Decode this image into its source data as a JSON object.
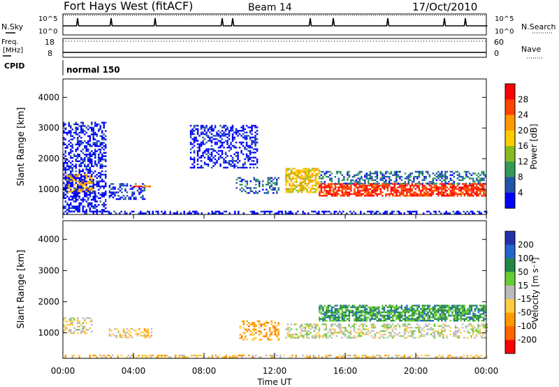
{
  "header": {
    "station": "Fort Hays West (fitACF)",
    "beam": "Beam 14",
    "date": "17/Oct/2010"
  },
  "noise_panel": {
    "left_label": "N.Sky",
    "right_label": "N.Search",
    "left_ticks": [
      "10^5",
      "10^0"
    ],
    "right_ticks": [
      "10^5",
      "10^0"
    ]
  },
  "freq_panel": {
    "left_label_1": "Freq.",
    "left_label_2": "[MHz]",
    "left_ticks": [
      "18",
      "8"
    ],
    "right_label": "Nave",
    "right_ticks": [
      "60",
      "0"
    ]
  },
  "cpid_panel": {
    "label": "CPID",
    "mode": "normal 150"
  },
  "power_panel": {
    "ylabel": "Slant Range [km]",
    "colorbar_label": "Power [dB]",
    "colorbar_ticks": [
      "28",
      "24",
      "20",
      "16",
      "12",
      "8",
      "4"
    ],
    "colorbar_colors": [
      "#ff0000",
      "#ff4400",
      "#ff9900",
      "#ffcc00",
      "#88bb22",
      "#339955",
      "#2255aa",
      "#0000ff"
    ]
  },
  "velocity_panel": {
    "ylabel": "Slant Range [km]",
    "colorbar_label": "Velocity [m s⁻¹]",
    "colorbar_ticks": [
      "200",
      "100",
      "50",
      "15",
      "-15",
      "-50",
      "-100",
      "-200"
    ],
    "colorbar_colors": [
      "#2233aa",
      "#2266cc",
      "#228844",
      "#66cc33",
      "#bbbbbb",
      "#ffcc44",
      "#ff9900",
      "#ff6600",
      "#ff0000"
    ]
  },
  "x_axis": {
    "label": "Time UT",
    "ticks": [
      "00:00",
      "04:00",
      "08:00",
      "12:00",
      "16:00",
      "20:00",
      "00:00"
    ]
  },
  "chart_data": {
    "type": "heatmap",
    "title": "Fort Hays West (fitACF)",
    "xlabel": "Time UT",
    "ylabel": "Slant Range [km]",
    "xlim": [
      0,
      24
    ],
    "ylim": [
      180,
      4600
    ],
    "y_ticks": [
      1000,
      2000,
      3000,
      4000
    ],
    "series": [
      {
        "name": "Power [dB]",
        "color_scale": [
          4,
          32
        ],
        "regions": [
          {
            "t": [
              0.2,
              1.6
            ],
            "r": [
              900,
              1500
            ],
            "value": 22
          },
          {
            "t": [
              0.0,
              2.4
            ],
            "r": [
              300,
              3200
            ],
            "value": 6
          },
          {
            "t": [
              2.6,
              4.6
            ],
            "r": [
              700,
              1200
            ],
            "value": 8
          },
          {
            "t": [
              4.0,
              5.0
            ],
            "r": [
              1080,
              1120
            ],
            "value": 26
          },
          {
            "t": [
              7.2,
              11.0
            ],
            "r": [
              1700,
              3100
            ],
            "value": 6
          },
          {
            "t": [
              9.8,
              12.2
            ],
            "r": [
              900,
              1400
            ],
            "value": 10
          },
          {
            "t": [
              12.6,
              14.5
            ],
            "r": [
              900,
              1700
            ],
            "value": 20
          },
          {
            "t": [
              14.5,
              24.0
            ],
            "r": [
              800,
              1200
            ],
            "value": 28
          },
          {
            "t": [
              14.5,
              24.0
            ],
            "r": [
              1200,
              1600
            ],
            "value": 10
          },
          {
            "t": [
              0.0,
              24.0
            ],
            "r": [
              200,
              300
            ],
            "value": 6
          }
        ]
      },
      {
        "name": "Velocity [m s⁻¹]",
        "color_scale": [
          -250,
          250
        ],
        "regions": [
          {
            "t": [
              0.0,
              1.6
            ],
            "r": [
              1000,
              1500
            ],
            "value": -15
          },
          {
            "t": [
              2.6,
              5.0
            ],
            "r": [
              850,
              1150
            ],
            "value": -50
          },
          {
            "t": [
              10.0,
              12.2
            ],
            "r": [
              800,
              1400
            ],
            "value": -100
          },
          {
            "t": [
              12.6,
              24.0
            ],
            "r": [
              850,
              1300
            ],
            "value": 0
          },
          {
            "t": [
              14.5,
              24.0
            ],
            "r": [
              1400,
              1900
            ],
            "value": 100
          },
          {
            "t": [
              0.0,
              24.0
            ],
            "r": [
              200,
              300
            ],
            "value": -50
          }
        ]
      }
    ]
  }
}
